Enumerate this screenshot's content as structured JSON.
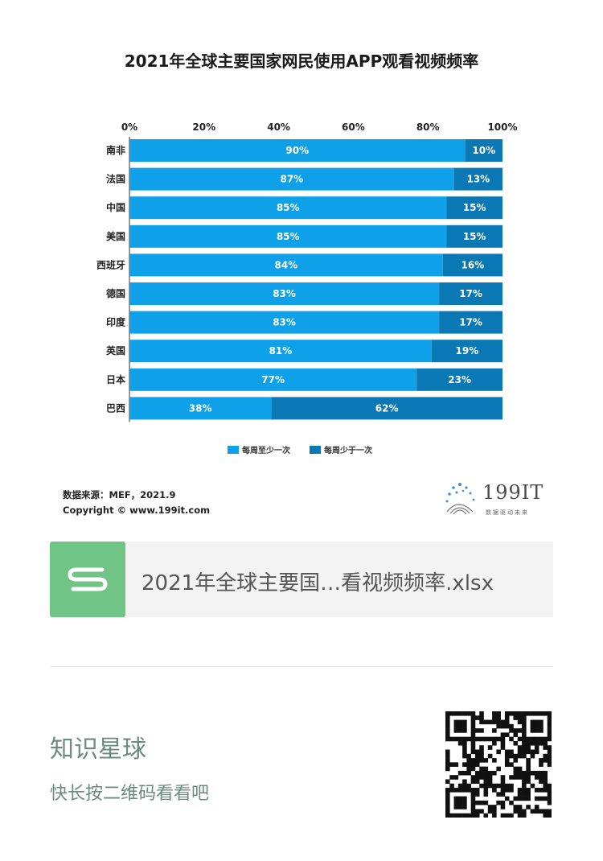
{
  "chart_data": {
    "type": "bar",
    "stacked": true,
    "orientation": "horizontal",
    "title": "2021年全球主要国家网民使用APP观看视频频率",
    "categories": [
      "南非",
      "法国",
      "中国",
      "美国",
      "西班牙",
      "德国",
      "印度",
      "英国",
      "日本",
      "巴西"
    ],
    "series": [
      {
        "name": "每周至少一次",
        "color": "#0ea0e8",
        "values": [
          90,
          87,
          85,
          85,
          84,
          83,
          83,
          81,
          77,
          38
        ]
      },
      {
        "name": "每周少于一次",
        "color": "#0a78b4",
        "values": [
          10,
          13,
          15,
          15,
          16,
          17,
          17,
          19,
          23,
          62
        ]
      }
    ],
    "xlim": [
      0,
      100
    ],
    "x_ticks": [
      "0%",
      "20%",
      "40%",
      "60%",
      "80%",
      "100%"
    ],
    "legend_position": "bottom",
    "grid": false
  },
  "source": {
    "line1": "数据来源：MEF，2021.9",
    "line2": "Copyright © www.199it.com"
  },
  "logo": {
    "text": "199IT",
    "subtitle": "数据驱动未来"
  },
  "file_card": {
    "icon": "spreadsheet-s-icon",
    "name": "2021年全球主要国…看视频频率.xlsx"
  },
  "zsxq": {
    "title": "知识星球",
    "subtitle": "快长按二维码看看吧"
  }
}
